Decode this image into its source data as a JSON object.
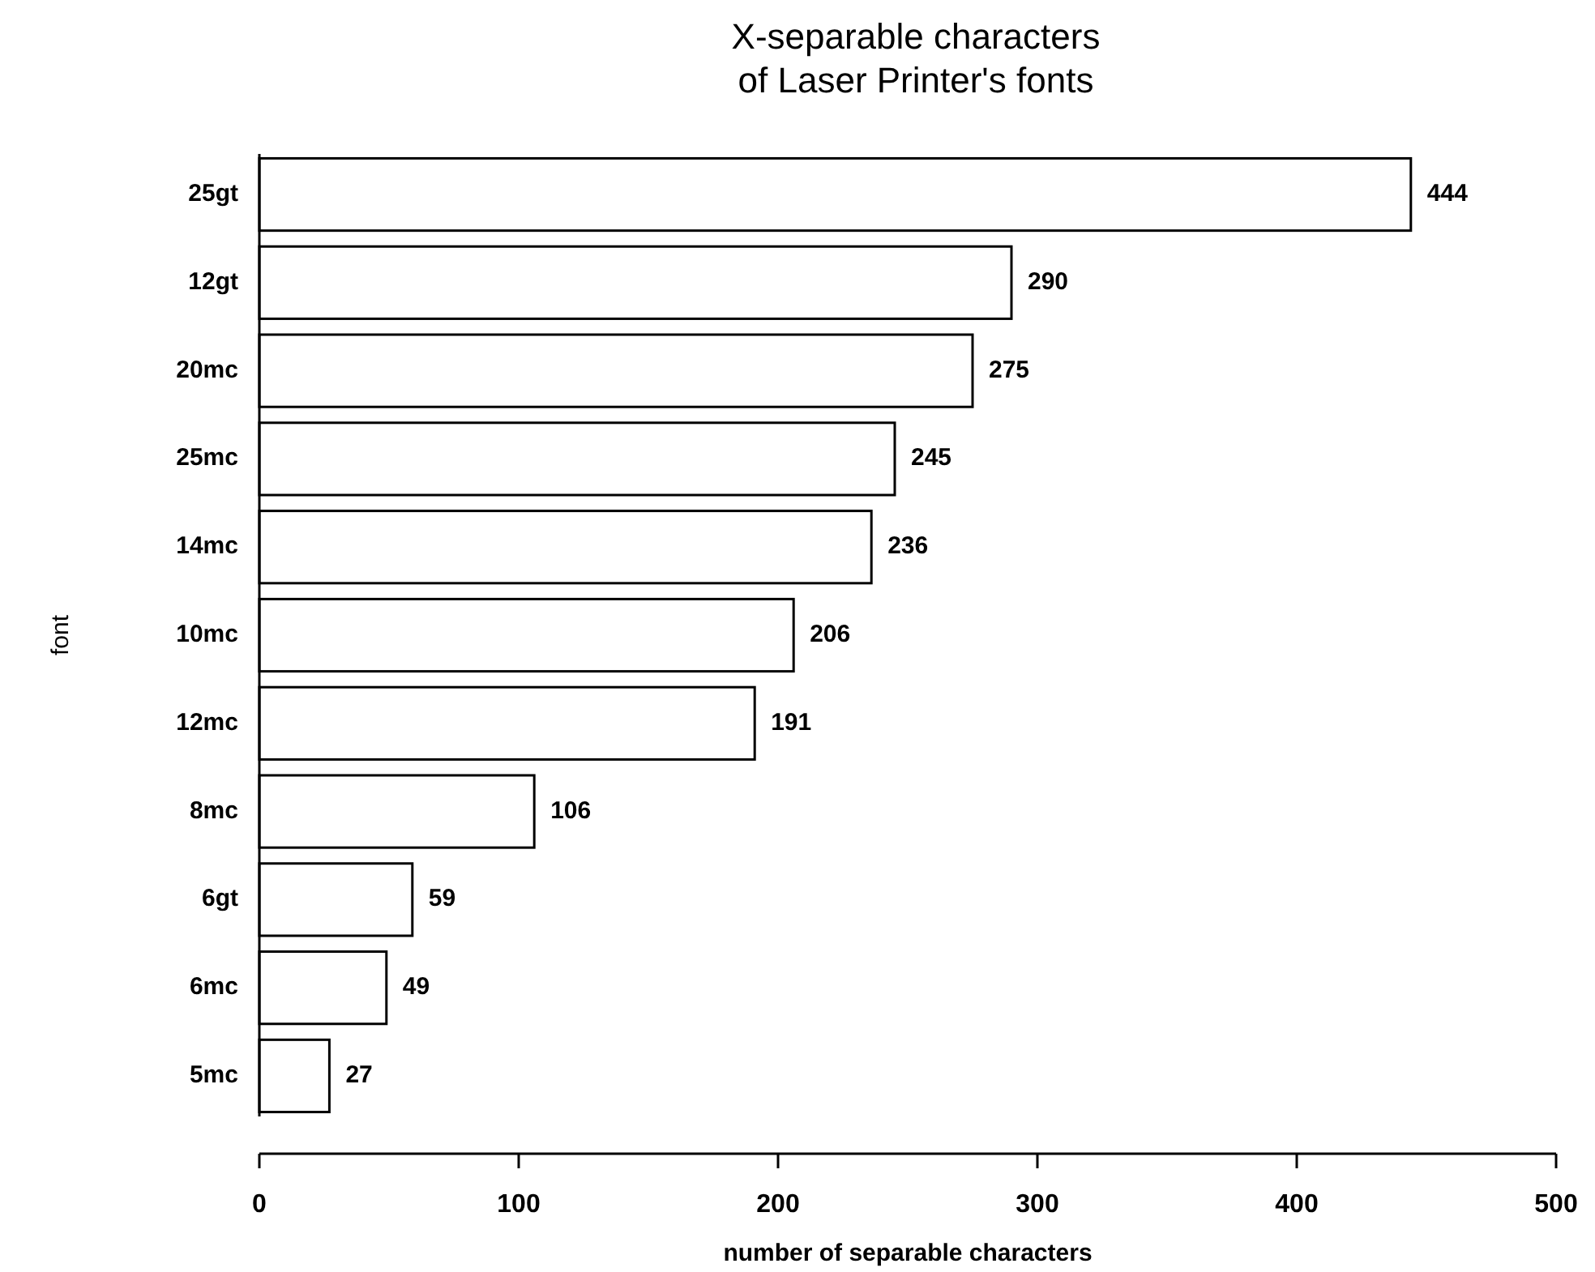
{
  "chart_data": {
    "type": "bar",
    "orientation": "horizontal",
    "title": "X-separable characters\nof Laser Printer's fonts",
    "xlabel": "number of separable characters",
    "ylabel": "font",
    "categories": [
      "25gt",
      "12gt",
      "20mc",
      "25mc",
      "14mc",
      "10mc",
      "12mc",
      "8mc",
      "6gt",
      "6mc",
      "5mc"
    ],
    "values": [
      444,
      290,
      275,
      245,
      236,
      206,
      191,
      106,
      59,
      49,
      27
    ],
    "color": "#ffffff",
    "xlim": [
      0,
      500
    ],
    "xticks": [
      0,
      100,
      200,
      300,
      400,
      500
    ],
    "data_labels": true
  }
}
